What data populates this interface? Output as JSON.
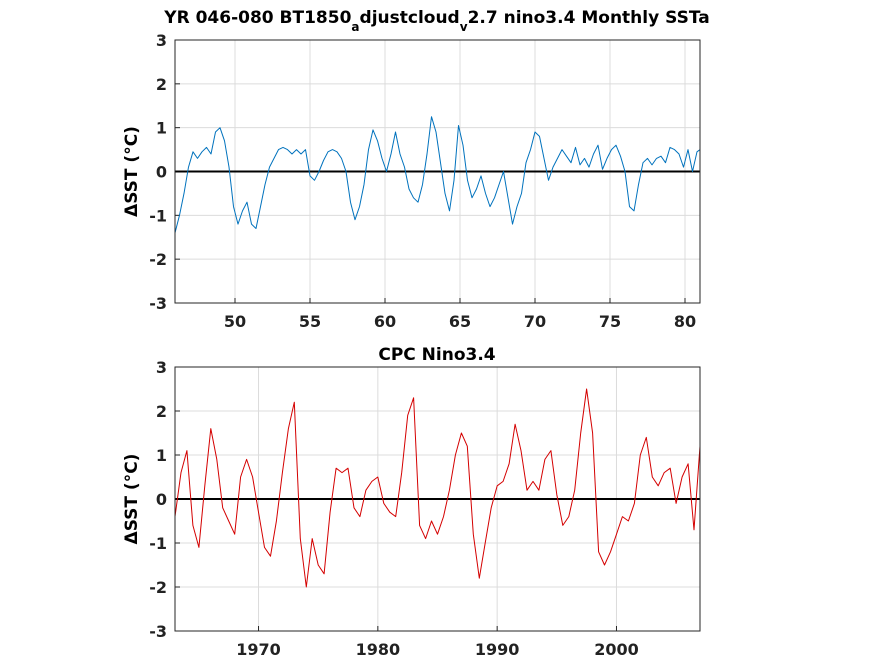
{
  "chart_data": [
    {
      "type": "line",
      "title": "YR 046-080 BT1850",
      "title_sub_a": "a",
      "title_mid": "djustcloud",
      "title_sub_v": "v",
      "title_tail": "2.7 nino3.4 Monthly SSTa",
      "ylabel": "ΔSST (°C)",
      "xlabel": "",
      "xlim": [
        46,
        81
      ],
      "ylim": [
        -3,
        3
      ],
      "xticks": [
        50,
        55,
        60,
        65,
        70,
        75,
        80
      ],
      "yticks": [
        -3,
        -2,
        -1,
        0,
        1,
        2,
        3
      ],
      "grid": true,
      "zero_line": true,
      "color": "#0072bd",
      "series": [
        {
          "x": [
            46.0,
            46.3,
            46.6,
            46.9,
            47.2,
            47.5,
            47.8,
            48.1,
            48.4,
            48.7,
            49.0,
            49.3,
            49.6,
            49.9,
            50.2,
            50.5,
            50.8,
            51.1,
            51.4,
            51.7,
            52.0,
            52.3,
            52.6,
            52.9,
            53.2,
            53.5,
            53.8,
            54.1,
            54.4,
            54.7,
            55.0,
            55.3,
            55.6,
            55.9,
            56.2,
            56.5,
            56.8,
            57.1,
            57.4,
            57.7,
            58.0,
            58.3,
            58.6,
            58.9,
            59.2,
            59.5,
            59.8,
            60.1,
            60.4,
            60.7,
            61.0,
            61.3,
            61.6,
            61.9,
            62.2,
            62.5,
            62.8,
            63.1,
            63.4,
            63.7,
            64.0,
            64.3,
            64.6,
            64.9,
            65.2,
            65.5,
            65.8,
            66.1,
            66.4,
            66.7,
            67.0,
            67.3,
            67.6,
            67.9,
            68.2,
            68.5,
            68.8,
            69.1,
            69.4,
            69.7,
            70.0,
            70.3,
            70.6,
            70.9,
            71.2,
            71.5,
            71.8,
            72.1,
            72.4,
            72.7,
            73.0,
            73.3,
            73.6,
            73.9,
            74.2,
            74.5,
            74.8,
            75.1,
            75.4,
            75.7,
            76.0,
            76.3,
            76.6,
            76.9,
            77.2,
            77.5,
            77.8,
            78.1,
            78.4,
            78.7,
            79.0,
            79.3,
            79.6,
            79.9,
            80.2,
            80.5,
            80.8,
            81.0
          ],
          "y": [
            -1.4,
            -1.0,
            -0.5,
            0.1,
            0.45,
            0.3,
            0.45,
            0.55,
            0.4,
            0.9,
            1.0,
            0.7,
            0.1,
            -0.8,
            -1.2,
            -0.9,
            -0.7,
            -1.2,
            -1.3,
            -0.8,
            -0.3,
            0.1,
            0.3,
            0.5,
            0.55,
            0.5,
            0.4,
            0.5,
            0.4,
            0.5,
            -0.1,
            -0.2,
            0.0,
            0.25,
            0.45,
            0.5,
            0.45,
            0.3,
            0.0,
            -0.7,
            -1.1,
            -0.8,
            -0.3,
            0.5,
            0.95,
            0.7,
            0.3,
            0.0,
            0.4,
            0.9,
            0.4,
            0.1,
            -0.4,
            -0.6,
            -0.7,
            -0.3,
            0.4,
            1.25,
            0.9,
            0.2,
            -0.5,
            -0.9,
            -0.2,
            1.05,
            0.6,
            -0.2,
            -0.6,
            -0.4,
            -0.1,
            -0.5,
            -0.8,
            -0.6,
            -0.3,
            0.0,
            -0.6,
            -1.2,
            -0.8,
            -0.5,
            0.2,
            0.5,
            0.9,
            0.8,
            0.3,
            -0.2,
            0.1,
            0.3,
            0.5,
            0.35,
            0.2,
            0.55,
            0.15,
            0.3,
            0.1,
            0.4,
            0.6,
            0.05,
            0.3,
            0.5,
            0.6,
            0.35,
            0.0,
            -0.8,
            -0.9,
            -0.3,
            0.2,
            0.3,
            0.15,
            0.3,
            0.35,
            0.2,
            0.55,
            0.5,
            0.4,
            0.1,
            0.5,
            0.0,
            0.45,
            0.5
          ]
        }
      ]
    },
    {
      "type": "line",
      "title": "CPC Nino3.4",
      "ylabel": "ΔSST (°C)",
      "xlabel": "",
      "xlim": [
        1963,
        2007
      ],
      "ylim": [
        -3,
        3
      ],
      "xticks": [
        1970,
        1980,
        1990,
        2000
      ],
      "yticks": [
        -3,
        -2,
        -1,
        0,
        1,
        2,
        3
      ],
      "grid": true,
      "zero_line": true,
      "color": "#d40000",
      "series": [
        {
          "x": [
            1963.0,
            1963.5,
            1964.0,
            1964.5,
            1965.0,
            1965.5,
            1966.0,
            1966.5,
            1967.0,
            1967.5,
            1968.0,
            1968.5,
            1969.0,
            1969.5,
            1970.0,
            1970.5,
            1971.0,
            1971.5,
            1972.0,
            1972.5,
            1973.0,
            1973.5,
            1974.0,
            1974.5,
            1975.0,
            1975.5,
            1976.0,
            1976.5,
            1977.0,
            1977.5,
            1978.0,
            1978.5,
            1979.0,
            1979.5,
            1980.0,
            1980.5,
            1981.0,
            1981.5,
            1982.0,
            1982.5,
            1983.0,
            1983.5,
            1984.0,
            1984.5,
            1985.0,
            1985.5,
            1986.0,
            1986.5,
            1987.0,
            1987.5,
            1988.0,
            1988.5,
            1989.0,
            1989.5,
            1990.0,
            1990.5,
            1991.0,
            1991.5,
            1992.0,
            1992.5,
            1993.0,
            1993.5,
            1994.0,
            1994.5,
            1995.0,
            1995.5,
            1996.0,
            1996.5,
            1997.0,
            1997.5,
            1998.0,
            1998.5,
            1999.0,
            1999.5,
            2000.0,
            2000.5,
            2001.0,
            2001.5,
            2002.0,
            2002.5,
            2003.0,
            2003.5,
            2004.0,
            2004.5,
            2005.0,
            2005.5,
            2006.0,
            2006.5,
            2007.0
          ],
          "y": [
            -0.4,
            0.6,
            1.1,
            -0.6,
            -1.1,
            0.3,
            1.6,
            0.9,
            -0.2,
            -0.5,
            -0.8,
            0.5,
            0.9,
            0.5,
            -0.3,
            -1.1,
            -1.3,
            -0.5,
            0.6,
            1.6,
            2.2,
            -0.9,
            -2.0,
            -0.9,
            -1.5,
            -1.7,
            -0.3,
            0.7,
            0.6,
            0.7,
            -0.2,
            -0.4,
            0.2,
            0.4,
            0.5,
            -0.1,
            -0.3,
            -0.4,
            0.6,
            1.9,
            2.3,
            -0.6,
            -0.9,
            -0.5,
            -0.8,
            -0.4,
            0.2,
            1.0,
            1.5,
            1.2,
            -0.8,
            -1.8,
            -1.0,
            -0.2,
            0.3,
            0.4,
            0.8,
            1.7,
            1.1,
            0.2,
            0.4,
            0.2,
            0.9,
            1.1,
            0.1,
            -0.6,
            -0.4,
            0.2,
            1.5,
            2.5,
            1.5,
            -1.2,
            -1.5,
            -1.2,
            -0.8,
            -0.4,
            -0.5,
            -0.1,
            1.0,
            1.4,
            0.5,
            0.3,
            0.6,
            0.7,
            -0.1,
            0.5,
            0.8,
            -0.7,
            1.2
          ]
        }
      ]
    }
  ]
}
